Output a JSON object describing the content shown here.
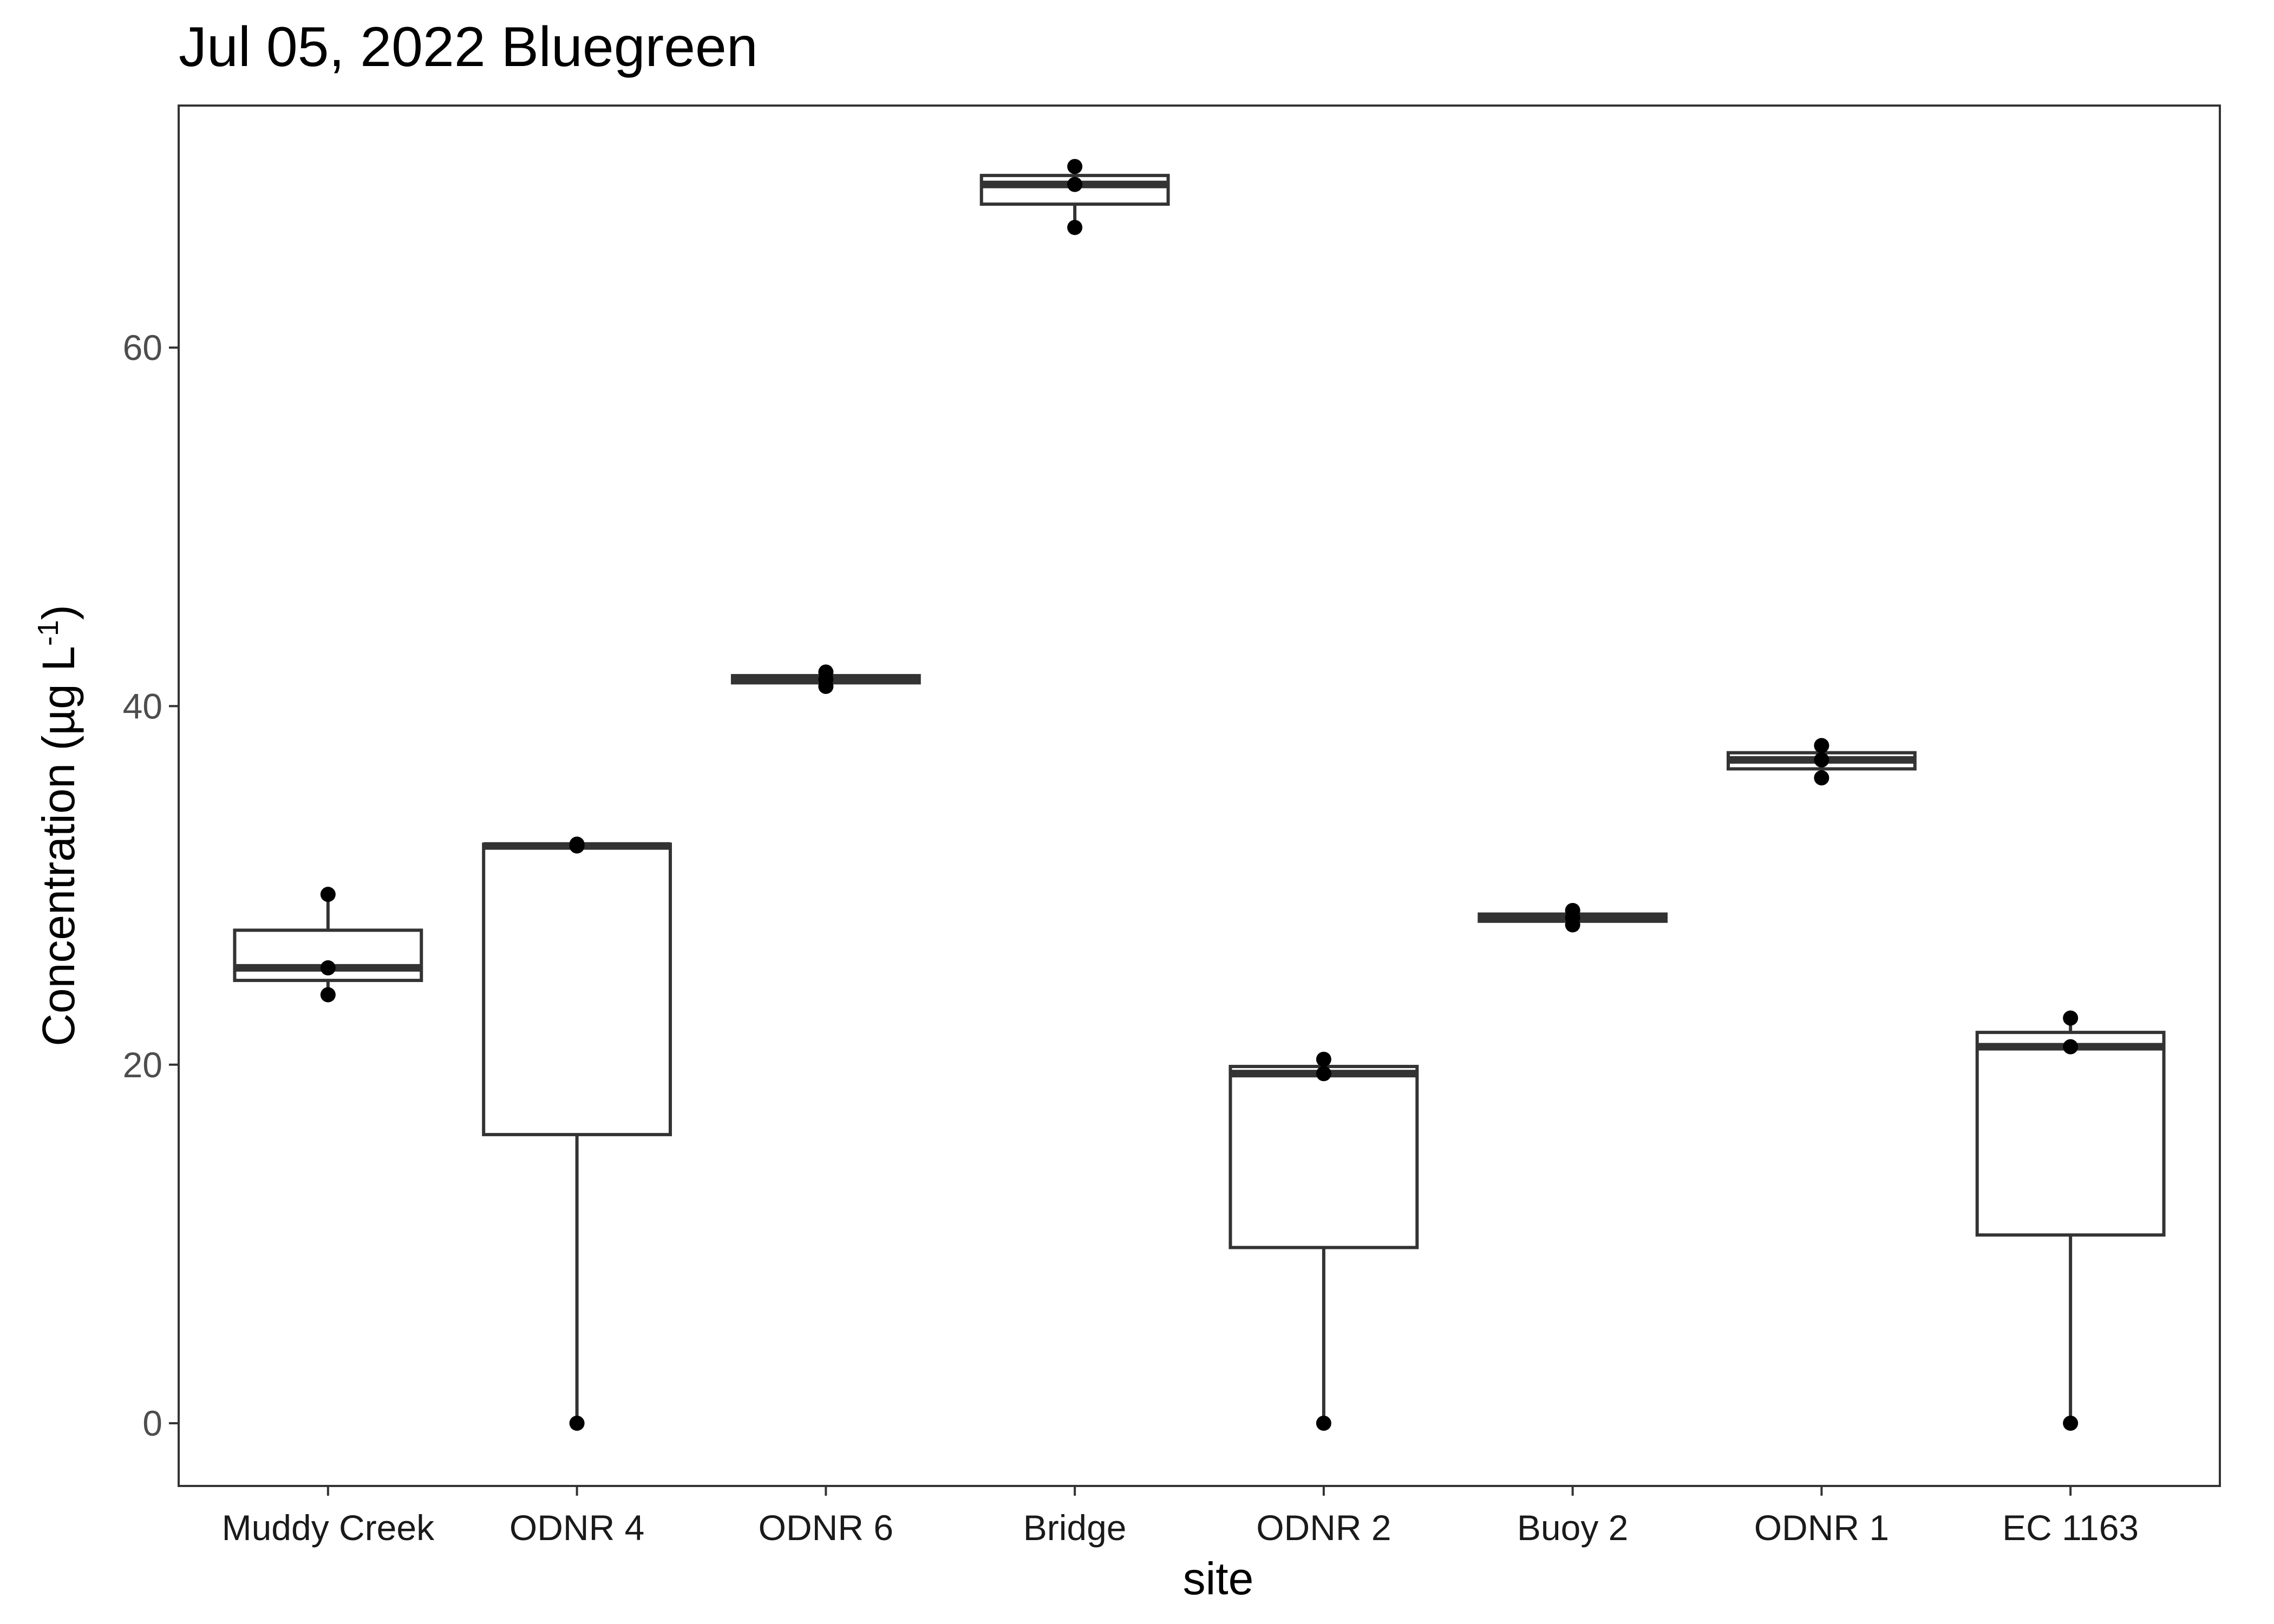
{
  "chart_data": {
    "type": "box",
    "title": "Jul 05, 2022 Bluegreen",
    "xlabel": "site",
    "ylabel": {
      "base": "Concentration (µg L",
      "superscript": "-1",
      "suffix": ")"
    },
    "ylim": [
      -3.5,
      73.5
    ],
    "yticks": [
      0,
      20,
      40,
      60
    ],
    "grid": false,
    "legend": "none",
    "categories": [
      "Muddy Creek",
      "ODNR 4",
      "ODNR 6",
      "Bridge",
      "ODNR 2",
      "Buoy 2",
      "ODNR 1",
      "EC 1163"
    ],
    "boxes": [
      {
        "category": "Muddy Creek",
        "min": 23.9,
        "q1": 24.7,
        "median": 25.4,
        "q3": 27.5,
        "max": 29.5,
        "points": [
          23.9,
          25.4,
          29.5
        ]
      },
      {
        "category": "ODNR 4",
        "min": 0,
        "q1": 16.1,
        "median": 32.2,
        "q3": 32.3,
        "max": 32.3,
        "points": [
          0,
          32.2,
          32.3
        ]
      },
      {
        "category": "ODNR 6",
        "min": 41.1,
        "q1": 41.3,
        "median": 41.5,
        "q3": 41.7,
        "max": 41.9,
        "points": [
          41.1,
          41.5,
          41.9
        ]
      },
      {
        "category": "Bridge",
        "min": 66.7,
        "q1": 68.0,
        "median": 69.1,
        "q3": 69.6,
        "max": 70.1,
        "points": [
          66.7,
          69.1,
          70.1
        ]
      },
      {
        "category": "ODNR 2",
        "min": 0,
        "q1": 9.8,
        "median": 19.5,
        "q3": 19.9,
        "max": 20.3,
        "points": [
          0,
          19.5,
          20.3
        ]
      },
      {
        "category": "Buoy 2",
        "min": 27.8,
        "q1": 28.0,
        "median": 28.2,
        "q3": 28.4,
        "max": 28.6,
        "points": [
          27.8,
          28.2,
          28.6
        ]
      },
      {
        "category": "ODNR 1",
        "min": 36.0,
        "q1": 36.5,
        "median": 37.0,
        "q3": 37.4,
        "max": 37.8,
        "points": [
          36.0,
          37.0,
          37.8
        ]
      },
      {
        "category": "EC 1163",
        "min": 0,
        "q1": 10.5,
        "median": 21.0,
        "q3": 21.8,
        "max": 22.6,
        "points": [
          0,
          21.0,
          22.6
        ]
      }
    ],
    "colors": {
      "box_stroke": "#333333",
      "box_fill": "#ffffff",
      "point": "#000000",
      "panel_border": "#333333",
      "tick_label": "#4d4d4d",
      "text": "#000000"
    }
  }
}
